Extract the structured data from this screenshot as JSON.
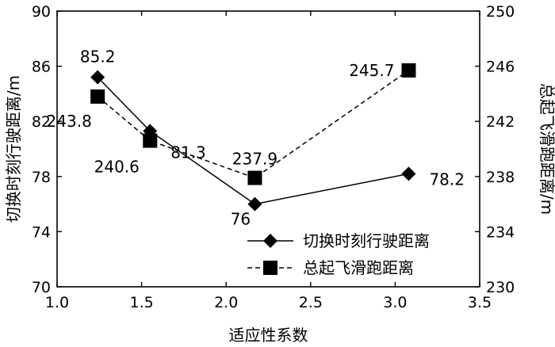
{
  "chart_data": {
    "type": "line",
    "xlabel": "适应性系数",
    "ylabel_left": "切换时刻行驶距离/m",
    "ylabel_right": "总起飞滑跑距离/m",
    "xlim": [
      1.0,
      3.5
    ],
    "xticks": [
      "1.0",
      "1.5",
      "2.0",
      "2.5",
      "3.0",
      "3.5"
    ],
    "ylim_left": [
      70,
      90
    ],
    "yticks_left": [
      "70",
      "74",
      "78",
      "82",
      "86",
      "90"
    ],
    "ylim_right": [
      230,
      250
    ],
    "yticks_right": [
      "230",
      "234",
      "238",
      "242",
      "246",
      "250"
    ],
    "grid": false,
    "legend_position": "lower-right",
    "series": [
      {
        "name": "切换时刻行驶距离",
        "axis": "left",
        "marker": "diamond",
        "line": "solid",
        "x": [
          1.24,
          1.55,
          2.17,
          3.08
        ],
        "values": [
          85.2,
          81.3,
          76,
          78.2
        ],
        "labels": [
          "85.2",
          "81.3",
          "76",
          "78.2"
        ]
      },
      {
        "name": "总起飞滑跑距离",
        "axis": "right",
        "marker": "square",
        "line": "dashed",
        "x": [
          1.24,
          1.55,
          2.17,
          3.08
        ],
        "values": [
          243.8,
          240.6,
          237.9,
          245.7
        ],
        "labels": [
          "243.8",
          "240.6",
          "237.9",
          "245.7"
        ]
      }
    ]
  }
}
